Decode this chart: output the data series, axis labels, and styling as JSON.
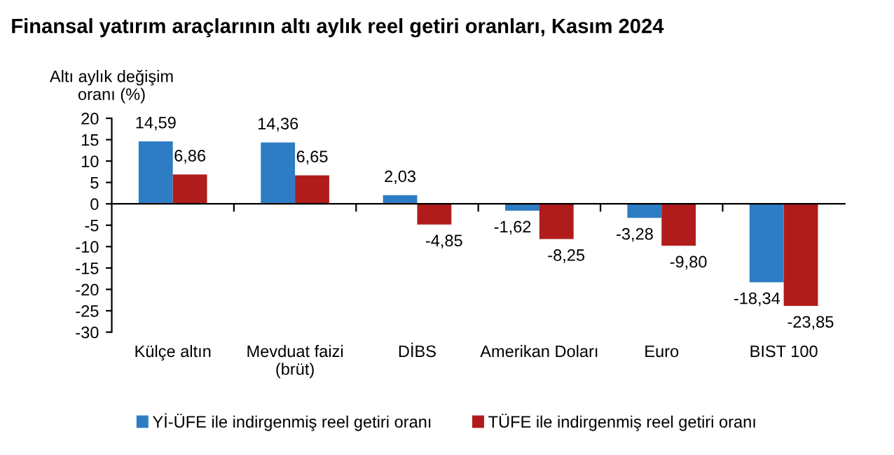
{
  "chart_data": {
    "type": "bar",
    "title": "Finansal yatırım araçlarının altı aylık reel getiri oranları, Kasım 2024",
    "ylabel": "Altı aylık değişim\noranı (%)",
    "categories": [
      "Külçe altın",
      "Mevduat faizi\n(brüt)",
      "DİBS",
      "Amerikan Doları",
      "Euro",
      "BIST 100"
    ],
    "series": [
      {
        "name": "Yİ-ÜFE ile indirgenmiş reel getiri oranı",
        "color": "#2e7dc4",
        "values": [
          14.59,
          14.36,
          2.03,
          -1.62,
          -3.28,
          -18.34
        ],
        "value_labels": [
          "14,59",
          "14,36",
          "2,03",
          "-1,62",
          "-3,28",
          "-18,34"
        ]
      },
      {
        "name": "TÜFE ile indirgenmiş reel getiri oranı",
        "color": "#b01c1c",
        "values": [
          6.86,
          6.65,
          -4.85,
          -8.25,
          -9.8,
          -23.85
        ],
        "value_labels": [
          "6,86",
          "6,65",
          "-4,85",
          "-8,25",
          "-9,80",
          "-23,85"
        ]
      }
    ],
    "ylim": [
      -30,
      20
    ],
    "yticks": [
      -30,
      -25,
      -20,
      -15,
      -10,
      -5,
      0,
      5,
      10,
      15,
      20
    ],
    "legend": "bottom"
  }
}
